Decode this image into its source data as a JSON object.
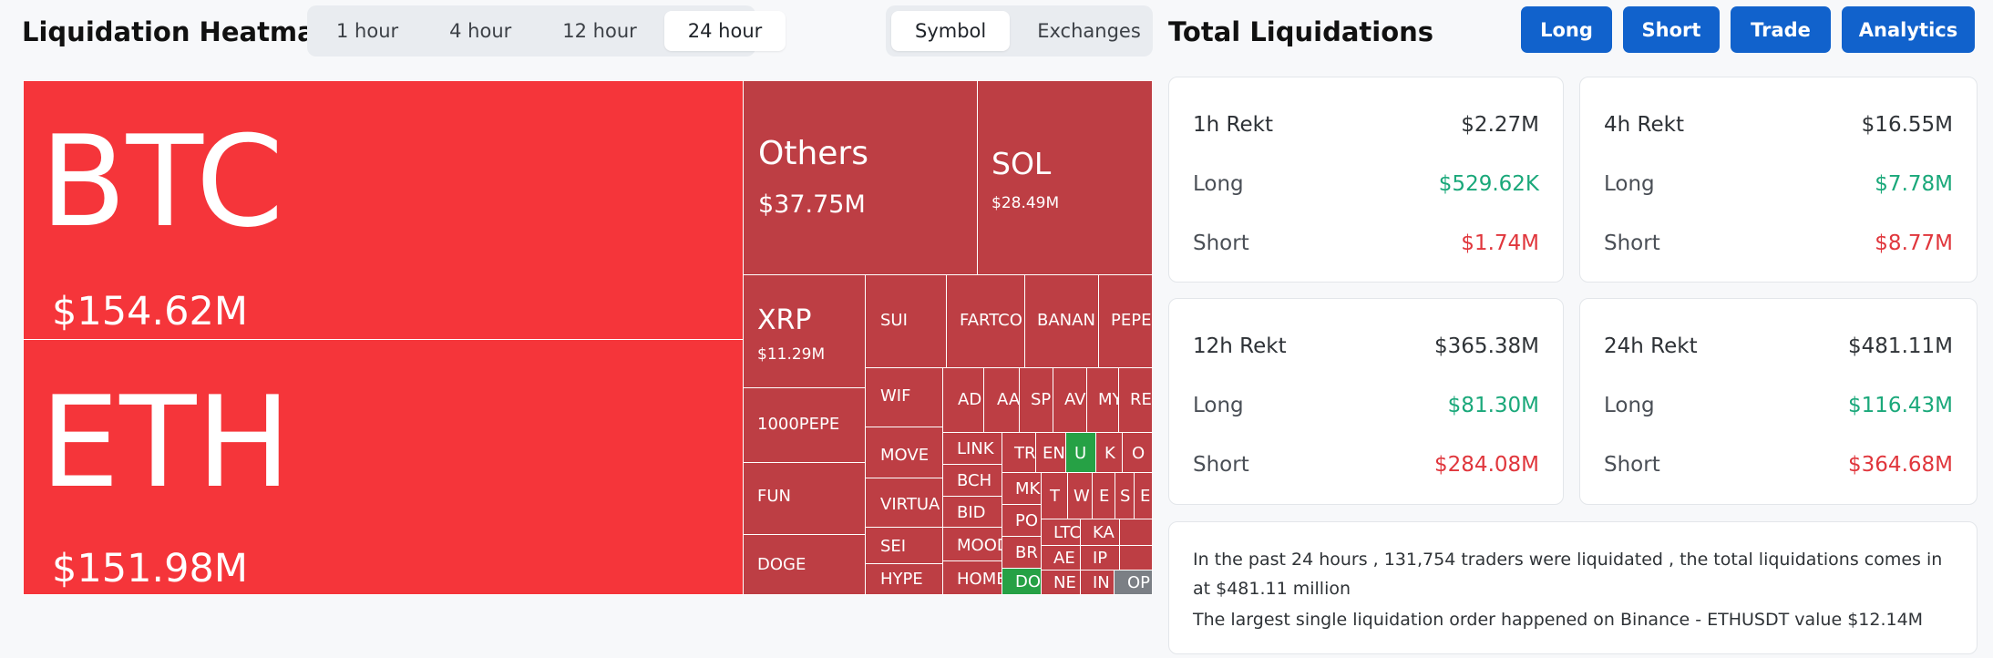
{
  "heatmap": {
    "title": "Liquidation Heatmap",
    "timeframes": [
      "1 hour",
      "4 hour",
      "12 hour",
      "24 hour"
    ],
    "active_timeframe": "24 hour",
    "views": [
      "Symbol",
      "Exchanges"
    ],
    "active_view": "Symbol",
    "tiles": {
      "btc": {
        "symbol": "BTC",
        "value": "$154.62M"
      },
      "eth": {
        "symbol": "ETH",
        "value": "$151.98M"
      },
      "others": {
        "symbol": "Others",
        "value": "$37.75M"
      },
      "sol": {
        "symbol": "SOL",
        "value": "$28.49M"
      },
      "xrp": {
        "symbol": "XRP",
        "value": "$11.29M"
      },
      "sui": {
        "symbol": "SUI"
      },
      "fartco": {
        "symbol": "FARTCO"
      },
      "banan": {
        "symbol": "BANAN"
      },
      "pepe": {
        "symbol": "PEPE"
      },
      "wif": {
        "symbol": "WIF"
      },
      "ad": {
        "symbol": "AD"
      },
      "aa": {
        "symbol": "AA"
      },
      "sp": {
        "symbol": "SP"
      },
      "av": {
        "symbol": "AV"
      },
      "my": {
        "symbol": "MY"
      },
      "re": {
        "symbol": "RE"
      },
      "pepe1000": {
        "symbol": "1000PEPE"
      },
      "move": {
        "symbol": "MOVE"
      },
      "link": {
        "symbol": "LINK"
      },
      "tr": {
        "symbol": "TR"
      },
      "en": {
        "symbol": "EN"
      },
      "u": {
        "symbol": "U"
      },
      "k": {
        "symbol": "K"
      },
      "o": {
        "symbol": "O"
      },
      "fun": {
        "symbol": "FUN"
      },
      "virtua": {
        "symbol": "VIRTUA"
      },
      "bch": {
        "symbol": "BCH"
      },
      "mk": {
        "symbol": "MK"
      },
      "t": {
        "symbol": "T"
      },
      "w": {
        "symbol": "W"
      },
      "e": {
        "symbol": "E"
      },
      "s": {
        "symbol": "S"
      },
      "e2": {
        "symbol": "E"
      },
      "bid": {
        "symbol": "BID"
      },
      "po": {
        "symbol": "PO"
      },
      "ltc": {
        "symbol": "LTC"
      },
      "ka": {
        "symbol": "KA"
      },
      "sei": {
        "symbol": "SEI"
      },
      "mood": {
        "symbol": "MOOD"
      },
      "br": {
        "symbol": "BR"
      },
      "ae": {
        "symbol": "AE"
      },
      "ip": {
        "symbol": "IP"
      },
      "doge": {
        "symbol": "DOGE"
      },
      "hype": {
        "symbol": "HYPE"
      },
      "home": {
        "symbol": "HOME"
      },
      "do": {
        "symbol": "DO"
      },
      "ne": {
        "symbol": "NE"
      },
      "in": {
        "symbol": "IN"
      },
      "op": {
        "symbol": "OP"
      }
    }
  },
  "total": {
    "title": "Total Liquidations",
    "buttons": {
      "long": "Long",
      "short": "Short",
      "trade": "Trade",
      "analytics": "Analytics"
    },
    "cards": {
      "h1": {
        "title": "1h Rekt",
        "total": "$2.27M",
        "long_label": "Long",
        "long": "$529.62K",
        "short_label": "Short",
        "short": "$1.74M"
      },
      "h4": {
        "title": "4h Rekt",
        "total": "$16.55M",
        "long_label": "Long",
        "long": "$7.78M",
        "short_label": "Short",
        "short": "$8.77M"
      },
      "h12": {
        "title": "12h Rekt",
        "total": "$365.38M",
        "long_label": "Long",
        "long": "$81.30M",
        "short_label": "Short",
        "short": "$284.08M"
      },
      "h24": {
        "title": "24h Rekt",
        "total": "$481.11M",
        "long_label": "Long",
        "long": "$116.43M",
        "short_label": "Short",
        "short": "$364.68M"
      }
    },
    "summary": {
      "line1": "In the past 24 hours , 131,754 traders were liquidated , the total liquidations comes in at $481.11 million",
      "line2": "The largest single liquidation order happened on Binance - ETHUSDT value $12.14M"
    }
  },
  "colors": {
    "major_tile": "#f5353a",
    "short_tile": "#bd3e44",
    "long_tile": "#26a145",
    "neutral_tile": "#7b7f85",
    "accent_button": "#1162cc",
    "long_text": "#1aa87a",
    "short_text": "#e0363c"
  }
}
